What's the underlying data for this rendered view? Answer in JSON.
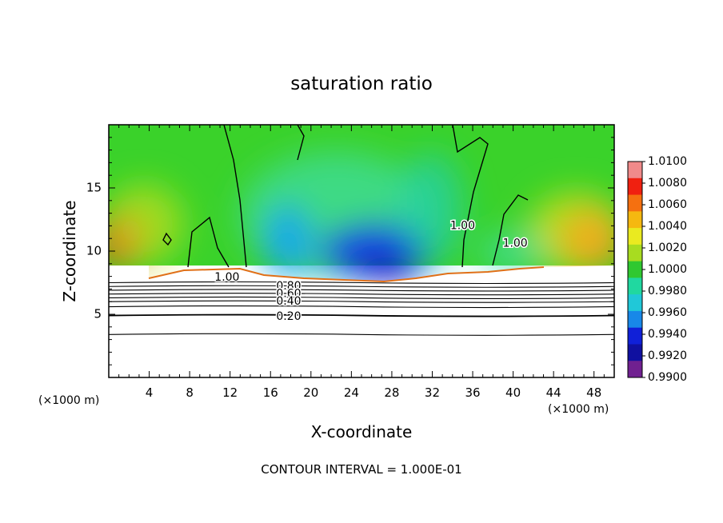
{
  "chart_data": {
    "type": "heatmap",
    "title": "saturation ratio",
    "xlabel": "X-coordinate",
    "ylabel": "Z-coordinate",
    "x_unit_label": "(×1000 m)",
    "x_unit_label_right": "(×1000 m)",
    "footer": "CONTOUR INTERVAL = 1.000E-01",
    "xlim": [
      0,
      50
    ],
    "ylim": [
      0,
      20
    ],
    "x_ticks": [
      4,
      8,
      12,
      16,
      20,
      24,
      28,
      32,
      36,
      40,
      44,
      48
    ],
    "y_ticks": [
      5,
      10,
      15
    ],
    "colorbar": {
      "min": 0.99,
      "max": 1.01,
      "tick_labels": [
        "1.0100",
        "1.0080",
        "1.0060",
        "1.0040",
        "1.0020",
        "1.0000",
        "0.9980",
        "0.9960",
        "0.9940",
        "0.9920",
        "0.9900"
      ]
    },
    "contour_labels": [
      {
        "text": "1.00",
        "x": 11.7,
        "z": 7.9
      },
      {
        "text": "1.00",
        "x": 35.0,
        "z": 12.0
      },
      {
        "text": "1.00",
        "x": 40.2,
        "z": 10.6
      },
      {
        "text": "0.80",
        "x": 17.8,
        "z": 7.2
      },
      {
        "text": "0.60",
        "x": 17.8,
        "z": 6.6
      },
      {
        "text": "0.40",
        "x": 17.8,
        "z": 6.0
      },
      {
        "text": "0.20",
        "x": 17.8,
        "z": 4.8
      }
    ]
  }
}
